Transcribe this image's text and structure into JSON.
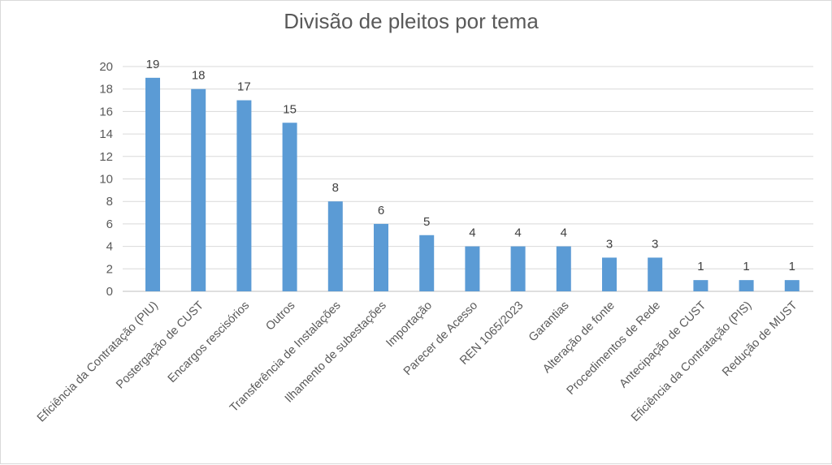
{
  "chart_data": {
    "type": "bar",
    "title": "Divisão de pleitos  por tema",
    "xlabel": "",
    "ylabel": "",
    "ylim": [
      0,
      20
    ],
    "yticks": [
      0,
      2,
      4,
      6,
      8,
      10,
      12,
      14,
      16,
      18,
      20
    ],
    "grid": true,
    "legend": "none",
    "bar_color": "#5b9bd5",
    "categories": [
      "Eficiência da Contratação (PIU)",
      "Postergação de CUST",
      "Encargos rescisórios",
      "Outros",
      "Transferência de Instalações",
      "Ilhamento de subestações",
      "Importação",
      "Parecer de Acesso",
      "REN 1065/2023",
      "Garantias",
      "Alteração de fonte",
      "Procedimentos de Rede",
      "Antecipação de CUST",
      "Eficiência da Contratação (PIS)",
      "Redução de MUST"
    ],
    "values": [
      19,
      18,
      17,
      15,
      8,
      6,
      5,
      4,
      4,
      4,
      3,
      3,
      1,
      1,
      1
    ]
  }
}
